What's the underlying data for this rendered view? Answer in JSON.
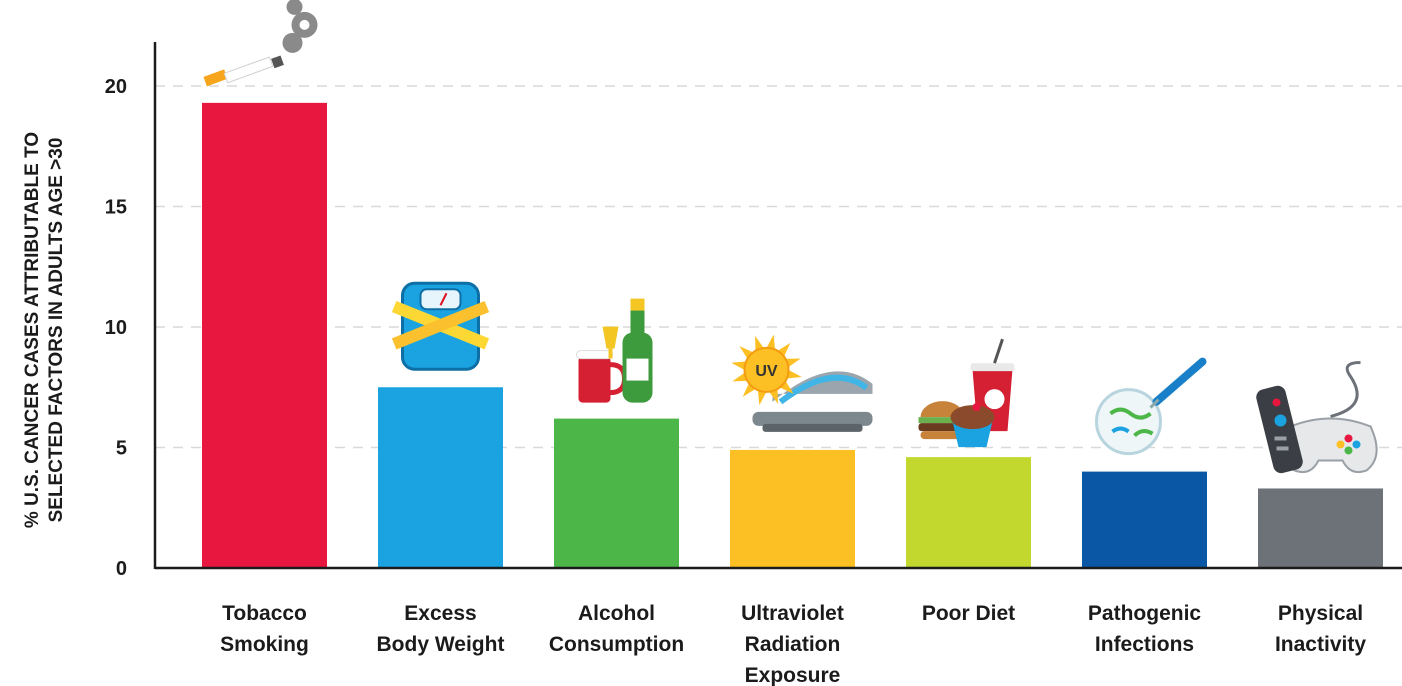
{
  "chart_data": {
    "type": "bar",
    "categories": [
      [
        "Tobacco",
        "Smoking"
      ],
      [
        "Excess",
        "Body Weight"
      ],
      [
        "Alcohol",
        "Consumption"
      ],
      [
        "Ultraviolet",
        "Radiation",
        "Exposure"
      ],
      [
        "Poor Diet"
      ],
      [
        "Pathogenic",
        "Infections"
      ],
      [
        "Physical",
        "Inactivity"
      ]
    ],
    "values": [
      19.3,
      7.5,
      6.2,
      4.9,
      4.6,
      4.0,
      3.3
    ],
    "colors": [
      "#e8173f",
      "#1aa3e0",
      "#4cb748",
      "#fdc024",
      "#c2d82e",
      "#0a57a6",
      "#6d7178"
    ],
    "icons": [
      "cigarette-icon",
      "scale-tape-icon",
      "drinks-icon",
      "uv-tanning-bed-icon",
      "fast-food-icon",
      "petri-dish-icon",
      "remote-gamepad-icon"
    ],
    "ylabel": [
      "% U.S. CANCER CASES ATTRIBUTABLE TO",
      "SELECTED FACTORS IN ADULTS AGE >30"
    ],
    "yticks": [
      0,
      5,
      10,
      15,
      20
    ],
    "ylim": [
      0,
      22
    ],
    "grid": true
  }
}
